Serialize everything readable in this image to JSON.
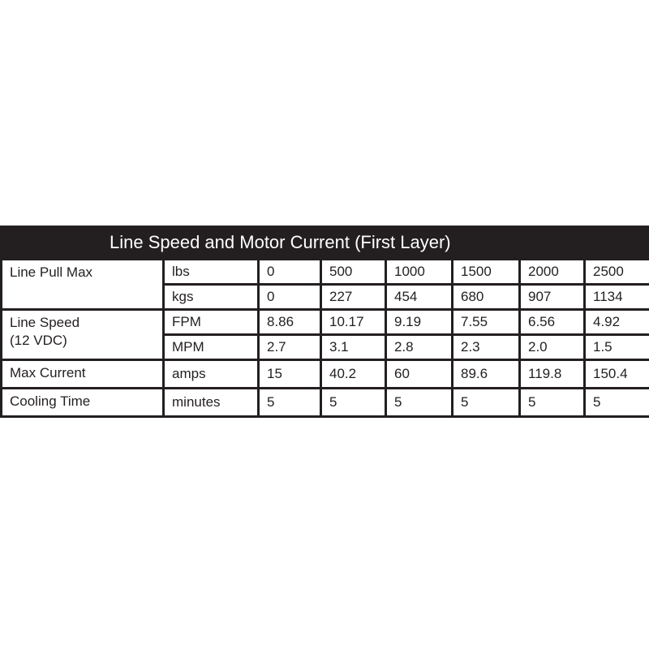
{
  "title": "Line Speed and Motor Current (First Layer)",
  "rows": [
    {
      "label": "Line Pull Max",
      "unit": "lbs",
      "values": [
        "0",
        "500",
        "1000",
        "1500",
        "2000",
        "2500"
      ]
    },
    {
      "unit": "kgs",
      "values": [
        "0",
        "227",
        "454",
        "680",
        "907",
        "1134"
      ]
    },
    {
      "label": "Line Speed",
      "label2": "(12 VDC)",
      "unit": "FPM",
      "values": [
        "8.86",
        "10.17",
        "9.19",
        "7.55",
        "6.56",
        "4.92"
      ]
    },
    {
      "unit": "MPM",
      "values": [
        "2.7",
        "3.1",
        "2.8",
        "2.3",
        "2.0",
        "1.5"
      ]
    },
    {
      "label": "Max Current",
      "unit": "amps",
      "values": [
        "15",
        "40.2",
        "60",
        "89.6",
        "119.8",
        "150.4"
      ]
    },
    {
      "label": "Cooling Time",
      "unit": "minutes",
      "values": [
        "5",
        "5",
        "5",
        "5",
        "5",
        "5"
      ]
    }
  ]
}
